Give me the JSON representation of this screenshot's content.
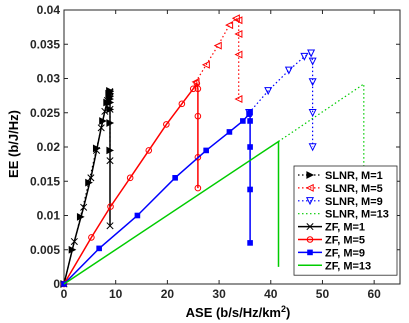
{
  "chart_data": {
    "type": "line",
    "title": "",
    "xlabel": "ASE (b/s/Hz/km",
    "xlabel_sup": "2",
    "xlabel_end": ")",
    "ylabel": "EE (b/J/Hz)",
    "xlim": [
      0,
      65
    ],
    "ylim": [
      0,
      0.04
    ],
    "xticks": [
      0,
      10,
      20,
      30,
      40,
      50,
      60
    ],
    "xtick_labels": [
      "0",
      "10",
      "20",
      "30",
      "40",
      "50",
      "60"
    ],
    "yticks": [
      0,
      0.005,
      0.01,
      0.015,
      0.02,
      0.025,
      0.03,
      0.035,
      0.04
    ],
    "ytick_labels": [
      "0",
      "0.005",
      "0.01",
      "0.015",
      "0.02",
      "0.025",
      "0.03",
      "0.035",
      "0.04"
    ],
    "grid": false,
    "legend_position": "bottom-right",
    "series": [
      {
        "name": "SLNR, M=1",
        "color": "#000000",
        "dash": "dotted",
        "marker": "triangle-right",
        "x": [
          0,
          1.6,
          3.2,
          4.8,
          6.3,
          7.5,
          8.3,
          8.7,
          8.85,
          8.9,
          8.9,
          8.9,
          8.9,
          8.9,
          8.9,
          8.9,
          8.9
        ],
        "y": [
          0,
          0.005,
          0.0098,
          0.0148,
          0.0198,
          0.0238,
          0.0265,
          0.0278,
          0.0282,
          0.0281,
          0.0278,
          0.0274,
          0.027,
          0.0265,
          0.0255,
          0.0235,
          0.0195
        ]
      },
      {
        "name": "SLNR, M=5",
        "color": "#ff0000",
        "dash": "dotted",
        "marker": "triangle-left",
        "x": [
          25.5,
          27.5,
          29.8,
          32,
          33.3,
          33.8,
          33.8,
          33.8,
          33.8
        ],
        "y": [
          0.0295,
          0.032,
          0.0348,
          0.0378,
          0.0388,
          0.0385,
          0.0365,
          0.0335,
          0.027
        ]
      },
      {
        "name": "SLNR, M=9",
        "color": "#0000ff",
        "dash": "dotted",
        "marker": "triangle-down",
        "x": [
          35.8,
          39.5,
          43.5,
          46.5,
          47.8,
          48.1,
          48.1,
          48.1,
          48.1
        ],
        "y": [
          0.025,
          0.0282,
          0.0312,
          0.0332,
          0.0337,
          0.0325,
          0.0295,
          0.025,
          0.02
        ]
      },
      {
        "name": "SLNR, M=13",
        "color": "#00cc00",
        "dash": "dotted",
        "marker": "none",
        "x": [
          41.5,
          58,
          58,
          58
        ],
        "y": [
          0.0208,
          0.0292,
          0.015,
          0.002
        ]
      },
      {
        "name": "ZF, M=1",
        "color": "#000000",
        "dash": "solid",
        "marker": "x",
        "x": [
          0,
          2,
          3.8,
          5.2,
          6.3,
          7.2,
          7.9,
          8.4,
          8.7,
          8.85,
          8.9,
          8.9,
          8.9,
          8.9
        ],
        "y": [
          0,
          0.0062,
          0.0112,
          0.0155,
          0.0195,
          0.0228,
          0.0252,
          0.0268,
          0.0276,
          0.0281,
          0.028,
          0.0255,
          0.018,
          0.0085
        ]
      },
      {
        "name": "ZF, M=5",
        "color": "#ff0000",
        "dash": "solid",
        "marker": "circle",
        "x": [
          0,
          5.3,
          9,
          12.8,
          16.4,
          19.8,
          22.8,
          25,
          25.7,
          25.9,
          25.9,
          25.9,
          25.9
        ],
        "y": [
          0,
          0.0068,
          0.0113,
          0.0155,
          0.0195,
          0.0233,
          0.0263,
          0.0285,
          0.0293,
          0.0285,
          0.0245,
          0.0185,
          0.014
        ]
      },
      {
        "name": "ZF, M=9",
        "color": "#0000ff",
        "dash": "solid",
        "marker": "square",
        "x": [
          0,
          6.8,
          14.2,
          21.5,
          27.5,
          32,
          34.6,
          35.8,
          36,
          36,
          36,
          36,
          36
        ],
        "y": [
          0,
          0.0052,
          0.01,
          0.0155,
          0.0195,
          0.0222,
          0.0238,
          0.0248,
          0.025,
          0.0238,
          0.02,
          0.0138,
          0.006
        ]
      },
      {
        "name": "ZF, M=13",
        "color": "#00cc00",
        "dash": "solid",
        "marker": "none",
        "x": [
          0,
          41.5,
          41.5,
          41.5
        ],
        "y": [
          0,
          0.0208,
          0.012,
          0.0025
        ]
      }
    ]
  }
}
